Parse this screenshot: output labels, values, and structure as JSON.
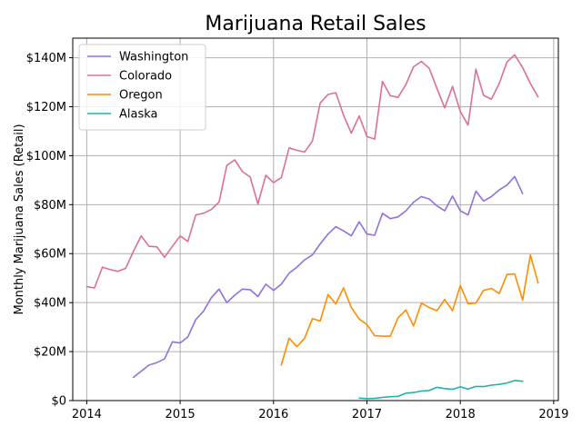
{
  "chart_data": {
    "type": "line",
    "title": "Marijuana Retail Sales",
    "xlabel": "",
    "ylabel": "Monthly Marijuana Sales (Retail)",
    "xlim": [
      2013.85,
      2019.05
    ],
    "ylim": [
      0,
      148
    ],
    "x_ticks": [
      2014,
      2015,
      2016,
      2017,
      2018,
      2019
    ],
    "x_tick_labels": [
      "2014",
      "2015",
      "2016",
      "2017",
      "2018",
      "2019"
    ],
    "y_ticks": [
      0,
      20,
      40,
      60,
      80,
      100,
      120,
      140
    ],
    "y_tick_labels": [
      "$0",
      "$20M",
      "$40M",
      "$60M",
      "$80M",
      "$100M",
      "$120M",
      "$140M"
    ],
    "y_unit": "millions of dollars",
    "grid": true,
    "legend_position": "upper-left",
    "series": [
      {
        "name": "Washington",
        "color": "#9370DB",
        "points": [
          [
            2014.5,
            9.5
          ],
          [
            2014.583,
            12
          ],
          [
            2014.667,
            14.5
          ],
          [
            2014.75,
            15.5
          ],
          [
            2014.833,
            17
          ],
          [
            2014.917,
            24
          ],
          [
            2015.0,
            23.5
          ],
          [
            2015.083,
            26
          ],
          [
            2015.167,
            33
          ],
          [
            2015.25,
            36.5
          ],
          [
            2015.333,
            42
          ],
          [
            2015.417,
            45.5
          ],
          [
            2015.5,
            40
          ],
          [
            2015.583,
            43
          ],
          [
            2015.667,
            45.5
          ],
          [
            2015.75,
            45.3
          ],
          [
            2015.833,
            42.5
          ],
          [
            2015.917,
            47.5
          ],
          [
            2016.0,
            45
          ],
          [
            2016.083,
            47.5
          ],
          [
            2016.167,
            52
          ],
          [
            2016.25,
            54.5
          ],
          [
            2016.333,
            57.5
          ],
          [
            2016.417,
            59.5
          ],
          [
            2016.5,
            64
          ],
          [
            2016.583,
            68
          ],
          [
            2016.667,
            71
          ],
          [
            2016.75,
            69.3
          ],
          [
            2016.833,
            67.3
          ],
          [
            2016.917,
            73
          ],
          [
            2017.0,
            68
          ],
          [
            2017.083,
            67.5
          ],
          [
            2017.167,
            76.5
          ],
          [
            2017.25,
            74.3
          ],
          [
            2017.333,
            75
          ],
          [
            2017.417,
            77.5
          ],
          [
            2017.5,
            81
          ],
          [
            2017.583,
            83.3
          ],
          [
            2017.667,
            82.3
          ],
          [
            2017.75,
            79.5
          ],
          [
            2017.833,
            77.5
          ],
          [
            2017.917,
            83.5
          ],
          [
            2018.0,
            77.5
          ],
          [
            2018.083,
            75.8
          ],
          [
            2018.167,
            85.5
          ],
          [
            2018.25,
            81.5
          ],
          [
            2018.333,
            83.3
          ],
          [
            2018.417,
            86
          ],
          [
            2018.5,
            88
          ],
          [
            2018.583,
            91.5
          ],
          [
            2018.667,
            84.5
          ]
        ]
      },
      {
        "name": "Colorado",
        "color": "#DB7093",
        "points": [
          [
            2014.0,
            46.5
          ],
          [
            2014.083,
            46
          ],
          [
            2014.167,
            54.5
          ],
          [
            2014.25,
            53.5
          ],
          [
            2014.333,
            52.8
          ],
          [
            2014.417,
            54
          ],
          [
            2014.5,
            61
          ],
          [
            2014.583,
            67.2
          ],
          [
            2014.667,
            63
          ],
          [
            2014.75,
            62.8
          ],
          [
            2014.833,
            58.5
          ],
          [
            2014.917,
            63
          ],
          [
            2015.0,
            67.2
          ],
          [
            2015.083,
            65
          ],
          [
            2015.167,
            75.8
          ],
          [
            2015.25,
            76.5
          ],
          [
            2015.333,
            78
          ],
          [
            2015.417,
            81
          ],
          [
            2015.5,
            96
          ],
          [
            2015.583,
            98.3
          ],
          [
            2015.667,
            93.5
          ],
          [
            2015.75,
            91.3
          ],
          [
            2015.833,
            80.3
          ],
          [
            2015.917,
            92
          ],
          [
            2016.0,
            89
          ],
          [
            2016.083,
            91
          ],
          [
            2016.167,
            103.2
          ],
          [
            2016.25,
            102.2
          ],
          [
            2016.333,
            101.5
          ],
          [
            2016.417,
            106
          ],
          [
            2016.5,
            121.5
          ],
          [
            2016.583,
            125
          ],
          [
            2016.667,
            125.7
          ],
          [
            2016.75,
            116.5
          ],
          [
            2016.833,
            109.2
          ],
          [
            2016.917,
            116.2
          ],
          [
            2017.0,
            107.8
          ],
          [
            2017.083,
            106.8
          ],
          [
            2017.167,
            130.3
          ],
          [
            2017.25,
            124.5
          ],
          [
            2017.333,
            123.8
          ],
          [
            2017.417,
            129
          ],
          [
            2017.5,
            136.3
          ],
          [
            2017.583,
            138.5
          ],
          [
            2017.667,
            135.7
          ],
          [
            2017.75,
            127.5
          ],
          [
            2017.833,
            119.5
          ],
          [
            2017.917,
            128.3
          ],
          [
            2018.0,
            118
          ],
          [
            2018.083,
            112.5
          ],
          [
            2018.167,
            135.3
          ],
          [
            2018.25,
            124.6
          ],
          [
            2018.333,
            123.1
          ],
          [
            2018.417,
            129.5
          ],
          [
            2018.5,
            138.3
          ],
          [
            2018.583,
            141.2
          ],
          [
            2018.667,
            136
          ],
          [
            2018.75,
            129.5
          ],
          [
            2018.833,
            124
          ]
        ]
      },
      {
        "name": "Oregon",
        "color": "#FF8C00",
        "points": [
          [
            2016.083,
            14.5
          ],
          [
            2016.167,
            25.5
          ],
          [
            2016.25,
            22
          ],
          [
            2016.333,
            25.5
          ],
          [
            2016.417,
            33.5
          ],
          [
            2016.5,
            32.5
          ],
          [
            2016.583,
            43.3
          ],
          [
            2016.667,
            39.5
          ],
          [
            2016.75,
            46
          ],
          [
            2016.833,
            38
          ],
          [
            2016.917,
            33.3
          ],
          [
            2017.0,
            31
          ],
          [
            2017.083,
            26.5
          ],
          [
            2017.167,
            26.3
          ],
          [
            2017.25,
            26.3
          ],
          [
            2017.333,
            33.8
          ],
          [
            2017.417,
            37
          ],
          [
            2017.5,
            30.5
          ],
          [
            2017.583,
            39.8
          ],
          [
            2017.667,
            38
          ],
          [
            2017.75,
            36.7
          ],
          [
            2017.833,
            41.3
          ],
          [
            2017.917,
            36.7
          ],
          [
            2018.0,
            47
          ],
          [
            2018.083,
            39.5
          ],
          [
            2018.167,
            39.8
          ],
          [
            2018.25,
            45
          ],
          [
            2018.333,
            45.8
          ],
          [
            2018.417,
            43.7
          ],
          [
            2018.5,
            51.5
          ],
          [
            2018.583,
            51.7
          ],
          [
            2018.667,
            41
          ],
          [
            2018.75,
            59.5
          ],
          [
            2018.833,
            48
          ]
        ]
      },
      {
        "name": "Alaska",
        "color": "#20B2AA",
        "points": [
          [
            2016.917,
            1
          ],
          [
            2017.0,
            0.8
          ],
          [
            2017.083,
            0.9
          ],
          [
            2017.167,
            1.3
          ],
          [
            2017.25,
            1.6
          ],
          [
            2017.333,
            1.7
          ],
          [
            2017.417,
            3
          ],
          [
            2017.5,
            3.3
          ],
          [
            2017.583,
            3.9
          ],
          [
            2017.667,
            4.1
          ],
          [
            2017.75,
            5.4
          ],
          [
            2017.833,
            4.9
          ],
          [
            2017.917,
            4.6
          ],
          [
            2018.0,
            5.6
          ],
          [
            2018.083,
            4.7
          ],
          [
            2018.167,
            5.8
          ],
          [
            2018.25,
            5.7
          ],
          [
            2018.333,
            6.3
          ],
          [
            2018.417,
            6.6
          ],
          [
            2018.5,
            7.2
          ],
          [
            2018.583,
            8.2
          ],
          [
            2018.667,
            7.9
          ]
        ]
      }
    ]
  }
}
